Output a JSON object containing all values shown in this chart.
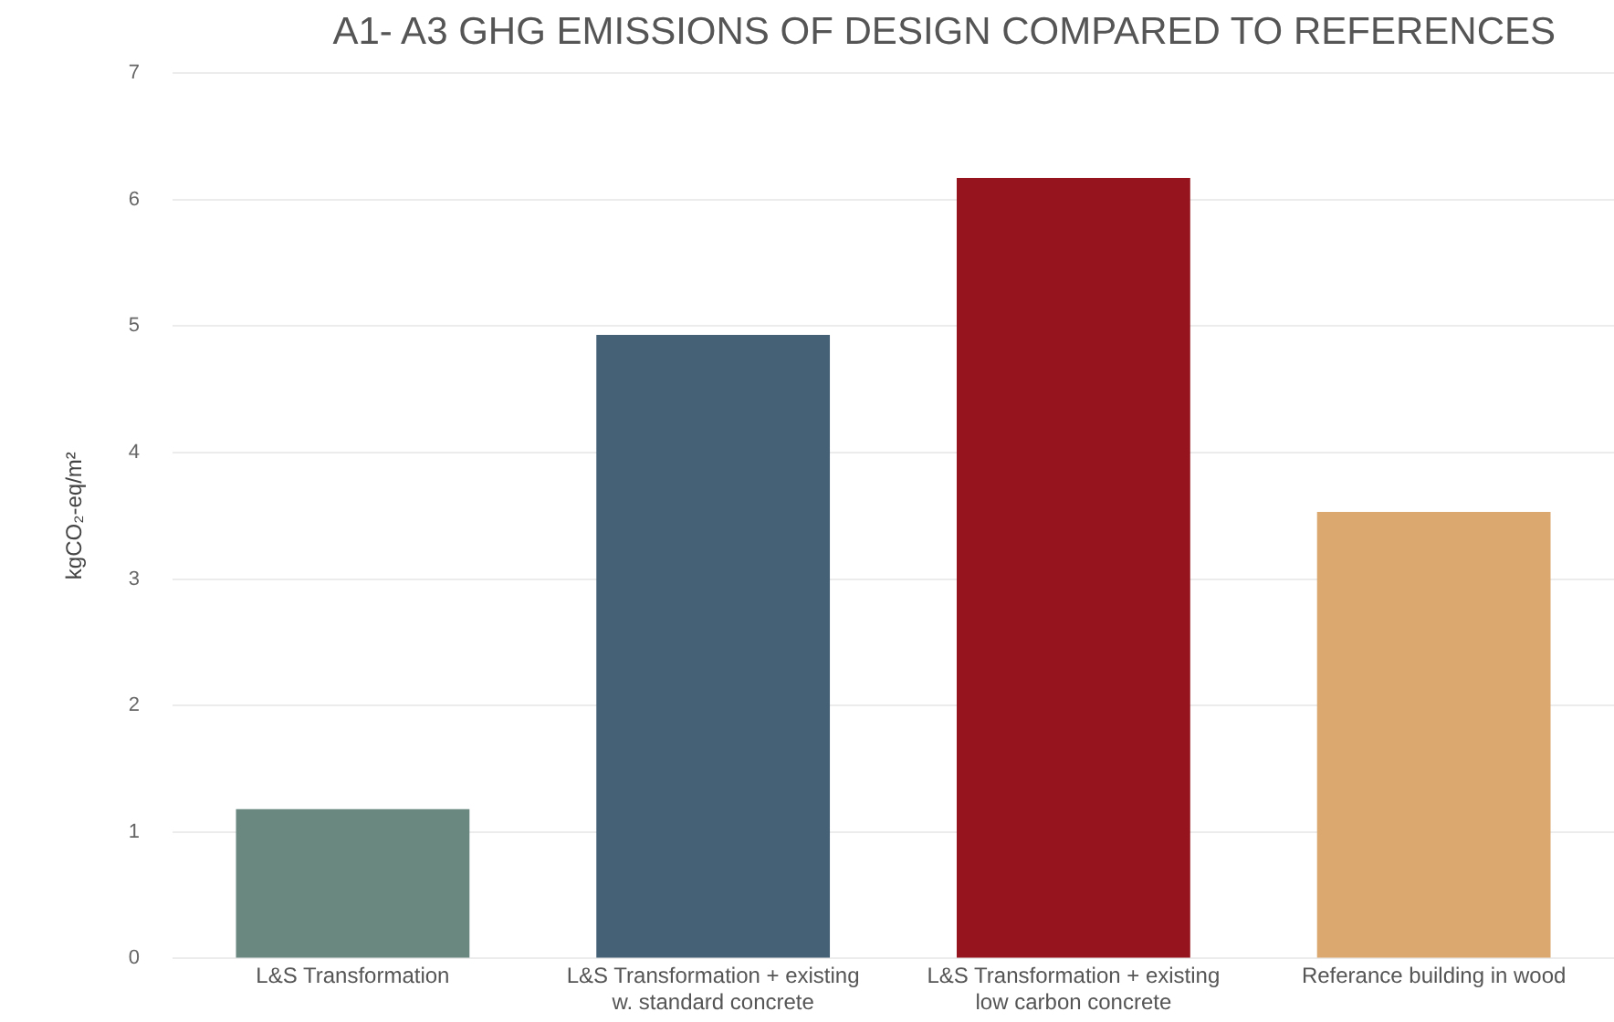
{
  "chart_data": {
    "type": "bar",
    "title": "A1- A3 GHG EMISSIONS OF DESIGN COMPARED TO REFERENCES",
    "ylabel": "kgCO₂-eq/m²",
    "categories": [
      "L&S Transformation",
      "L&S Transformation + existing w. standard concrete",
      "L&S Transformation + existing low carbon concrete",
      "Referance building in wood"
    ],
    "values": [
      1.18,
      4.93,
      6.17,
      3.53
    ],
    "colors": [
      "#6a8880",
      "#456176",
      "#95141d",
      "#dba870"
    ],
    "ylim": [
      0,
      7
    ],
    "yticks": [
      0,
      1,
      2,
      3,
      4,
      5,
      6,
      7
    ],
    "grid": "y",
    "legend": false
  }
}
